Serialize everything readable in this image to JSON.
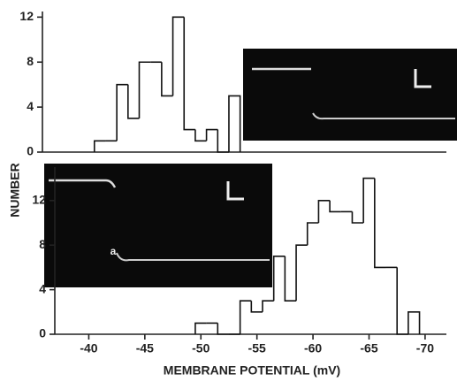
{
  "chart_data": [
    {
      "type": "histogram",
      "ylabel": "NUMBER",
      "bins": [
        -40.5,
        -41.5,
        -42.5,
        -43.5,
        -44.5,
        -45.5,
        -46.5,
        -47.5,
        -48.5,
        -49.5,
        -50.5,
        -51.5,
        -52.5,
        -53.5
      ],
      "values": [
        1,
        1,
        6,
        3,
        8,
        8,
        5,
        12,
        2,
        1,
        2,
        0,
        5
      ],
      "color": "#111111",
      "xlim": [
        -37.6,
        -71.9
      ],
      "ylim": [
        0,
        12.5
      ],
      "yticks": [
        0,
        4,
        8,
        12
      ]
    },
    {
      "type": "histogram",
      "xlabel": "MEMBRANE POTENTIAL (mV)",
      "annotations": [
        "a"
      ],
      "bins": [
        -49.5,
        -50.5,
        -51.5,
        -52.5,
        -53.5,
        -54.5,
        -55.5,
        -56.5,
        -57.5,
        -58.5,
        -59.5,
        -60.5,
        -61.5,
        -62.5,
        -63.5,
        -64.5,
        -65.5,
        -66.5,
        -67.5,
        -68.5,
        -69.5
      ],
      "values": [
        1,
        1,
        0,
        0,
        3,
        2,
        3,
        7,
        3,
        8,
        10,
        12,
        11,
        11,
        10,
        14,
        6,
        6,
        0,
        2
      ],
      "color": "#111111",
      "xlim": [
        -37.6,
        -71.9
      ],
      "xticks": [
        -40,
        -45,
        -50,
        -55,
        -60,
        -65,
        -70
      ],
      "ylim": [
        0,
        15
      ],
      "yticks": [
        0,
        4,
        8,
        12
      ]
    }
  ]
}
